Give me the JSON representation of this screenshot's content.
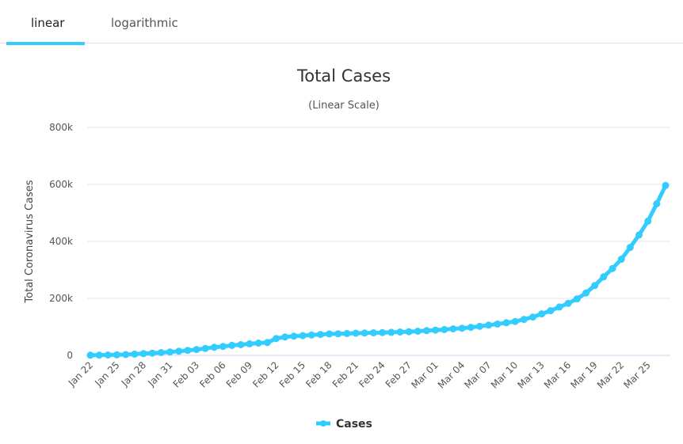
{
  "tabs": [
    {
      "label": "linear",
      "active": true
    },
    {
      "label": "logarithmic",
      "active": false
    }
  ],
  "colors": {
    "series": "#33ccff",
    "grid": "#e6e6e6",
    "axis": "#ccd6eb"
  },
  "chart_data": {
    "type": "line",
    "title": "Total Cases",
    "subtitle": "(Linear Scale)",
    "xlabel": "",
    "ylabel": "Total Coronavirus Cases",
    "ylim": [
      0,
      800000
    ],
    "yticks": [
      {
        "value": 0,
        "label": "0"
      },
      {
        "value": 200000,
        "label": "200k"
      },
      {
        "value": 400000,
        "label": "400k"
      },
      {
        "value": 600000,
        "label": "600k"
      },
      {
        "value": 800000,
        "label": "800k"
      }
    ],
    "grid": true,
    "legend": {
      "position": "bottom-center",
      "entries": [
        "Cases"
      ]
    },
    "xticks": [
      "Jan 22",
      "Jan 25",
      "Jan 28",
      "Jan 31",
      "Feb 03",
      "Feb 06",
      "Feb 09",
      "Feb 12",
      "Feb 15",
      "Feb 18",
      "Feb 21",
      "Feb 24",
      "Feb 27",
      "Mar 01",
      "Mar 04",
      "Mar 07",
      "Mar 10",
      "Mar 13",
      "Mar 16",
      "Mar 19",
      "Mar 22",
      "Mar 25"
    ],
    "xtick_interval_days": 3,
    "series": [
      {
        "name": "Cases",
        "values": [
          580,
          845,
          1317,
          2015,
          2800,
          4581,
          6058,
          7813,
          9823,
          11950,
          14553,
          17391,
          20630,
          24545,
          28266,
          31439,
          34876,
          37552,
          40553,
          43099,
          45134,
          59287,
          64438,
          67100,
          69197,
          71329,
          73332,
          75184,
          75700,
          76677,
          77673,
          78651,
          79205,
          80087,
          80828,
          81820,
          83112,
          84615,
          86604,
          88585,
          90443,
          93016,
          95314,
          98425,
          102050,
          106099,
          109991,
          114381,
          118948,
          126214,
          134576,
          145483,
          156653,
          169593,
          182490,
          198238,
          218822,
          244933,
          275597,
          305036,
          337489,
          378830,
          422574,
          471035,
          531865,
          596366
        ]
      }
    ]
  }
}
